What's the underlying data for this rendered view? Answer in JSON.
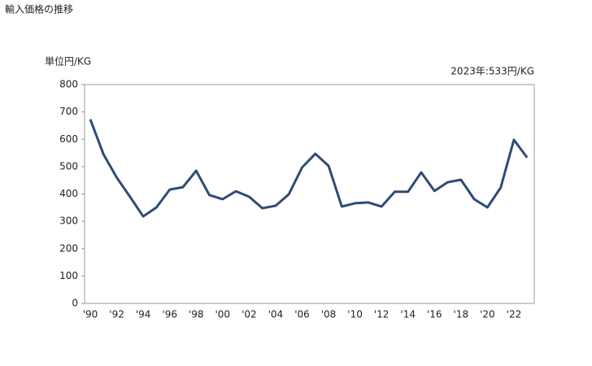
{
  "chart_data": {
    "type": "line",
    "title": "輸入価格の推移",
    "y_label": "単位円/KG",
    "annotation": "2023年:533円/KG",
    "categories": [
      "'90",
      null,
      "'92",
      null,
      "'94",
      null,
      "'96",
      null,
      "'98",
      null,
      "'00",
      null,
      "'02",
      null,
      "'04",
      null,
      "'06",
      null,
      "'08",
      null,
      "'10",
      null,
      "'12",
      null,
      "'14",
      null,
      "'16",
      null,
      "'18",
      null,
      "'20",
      null,
      "'22",
      null
    ],
    "series": [
      {
        "name": "輸入価格",
        "color": "#2f4b75",
        "values": [
          673,
          545,
          460,
          390,
          318,
          351,
          416,
          425,
          485,
          396,
          381,
          410,
          390,
          348,
          357,
          399,
          497,
          547,
          503,
          354,
          366,
          369,
          354,
          408,
          408,
          479,
          411,
          443,
          452,
          381,
          351,
          423,
          598,
          533
        ]
      }
    ],
    "ylim": [
      0,
      800
    ],
    "yticks": [
      0,
      100,
      200,
      300,
      400,
      500,
      600,
      700,
      800
    ],
    "grid": false
  }
}
